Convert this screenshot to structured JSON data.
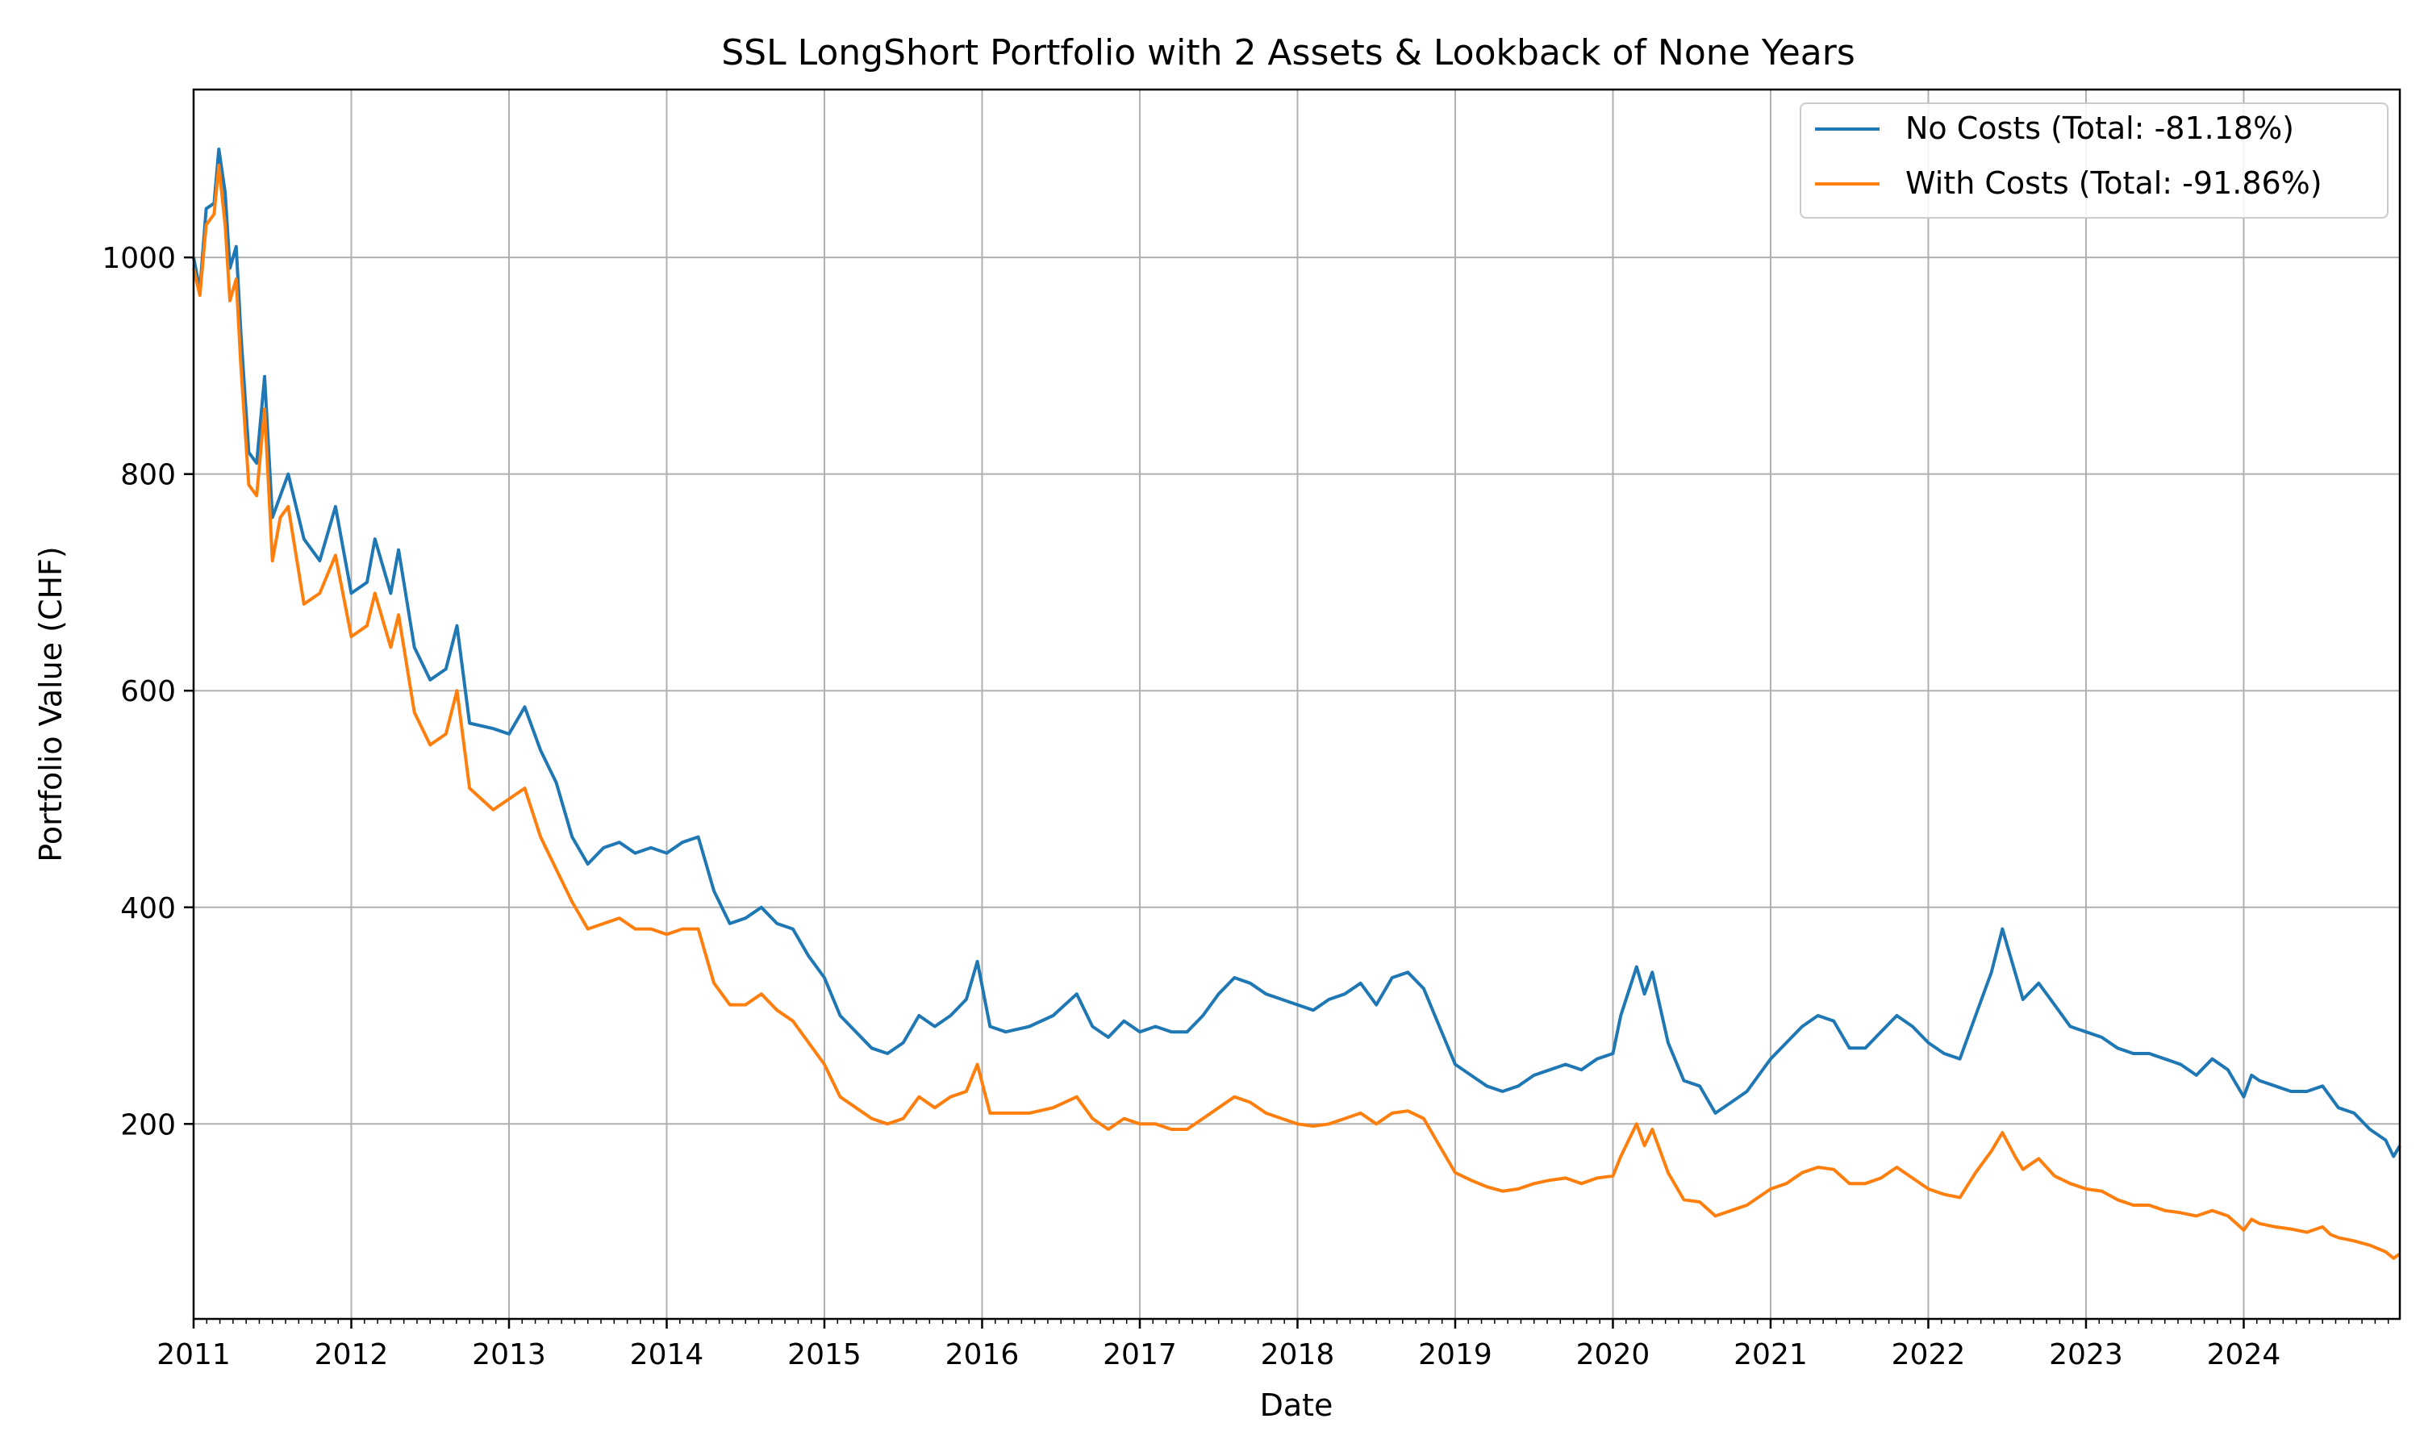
{
  "chart_data": {
    "type": "line",
    "title": "SSL LongShort Portfolio with 2 Assets & Lookback of None Years",
    "xlabel": "Date",
    "ylabel": "Portfolio Value (CHF)",
    "xlim": [
      2011.0,
      2024.99
    ],
    "ylim": [
      20,
      1155
    ],
    "x_ticks": [
      2011,
      2012,
      2013,
      2014,
      2015,
      2016,
      2017,
      2018,
      2019,
      2020,
      2021,
      2022,
      2023,
      2024
    ],
    "y_ticks": [
      200,
      400,
      600,
      800,
      1000
    ],
    "grid": true,
    "legend_position": "upper right",
    "series": [
      {
        "name": "No Costs (Total: -81.18%)",
        "color": "#1f77b4",
        "points": [
          [
            2011.0,
            1000
          ],
          [
            2011.04,
            970
          ],
          [
            2011.08,
            1045
          ],
          [
            2011.13,
            1050
          ],
          [
            2011.16,
            1100
          ],
          [
            2011.2,
            1060
          ],
          [
            2011.23,
            990
          ],
          [
            2011.27,
            1010
          ],
          [
            2011.3,
            930
          ],
          [
            2011.35,
            820
          ],
          [
            2011.4,
            810
          ],
          [
            2011.45,
            890
          ],
          [
            2011.5,
            760
          ],
          [
            2011.55,
            780
          ],
          [
            2011.6,
            800
          ],
          [
            2011.7,
            740
          ],
          [
            2011.8,
            720
          ],
          [
            2011.9,
            770
          ],
          [
            2012.0,
            690
          ],
          [
            2012.1,
            700
          ],
          [
            2012.15,
            740
          ],
          [
            2012.25,
            690
          ],
          [
            2012.3,
            730
          ],
          [
            2012.4,
            640
          ],
          [
            2012.5,
            610
          ],
          [
            2012.6,
            620
          ],
          [
            2012.67,
            660
          ],
          [
            2012.75,
            570
          ],
          [
            2012.9,
            565
          ],
          [
            2013.0,
            560
          ],
          [
            2013.1,
            585
          ],
          [
            2013.2,
            545
          ],
          [
            2013.3,
            515
          ],
          [
            2013.4,
            465
          ],
          [
            2013.5,
            440
          ],
          [
            2013.6,
            455
          ],
          [
            2013.7,
            460
          ],
          [
            2013.8,
            450
          ],
          [
            2013.9,
            455
          ],
          [
            2014.0,
            450
          ],
          [
            2014.1,
            460
          ],
          [
            2014.2,
            465
          ],
          [
            2014.3,
            415
          ],
          [
            2014.4,
            385
          ],
          [
            2014.5,
            390
          ],
          [
            2014.6,
            400
          ],
          [
            2014.7,
            385
          ],
          [
            2014.8,
            380
          ],
          [
            2014.9,
            355
          ],
          [
            2015.0,
            335
          ],
          [
            2015.1,
            300
          ],
          [
            2015.2,
            285
          ],
          [
            2015.3,
            270
          ],
          [
            2015.4,
            265
          ],
          [
            2015.5,
            275
          ],
          [
            2015.6,
            300
          ],
          [
            2015.7,
            290
          ],
          [
            2015.8,
            300
          ],
          [
            2015.9,
            315
          ],
          [
            2015.97,
            350
          ],
          [
            2016.05,
            290
          ],
          [
            2016.15,
            285
          ],
          [
            2016.3,
            290
          ],
          [
            2016.45,
            300
          ],
          [
            2016.6,
            320
          ],
          [
            2016.7,
            290
          ],
          [
            2016.8,
            280
          ],
          [
            2016.9,
            295
          ],
          [
            2017.0,
            285
          ],
          [
            2017.1,
            290
          ],
          [
            2017.2,
            285
          ],
          [
            2017.3,
            285
          ],
          [
            2017.4,
            300
          ],
          [
            2017.5,
            320
          ],
          [
            2017.6,
            335
          ],
          [
            2017.7,
            330
          ],
          [
            2017.8,
            320
          ],
          [
            2017.9,
            315
          ],
          [
            2018.0,
            310
          ],
          [
            2018.1,
            305
          ],
          [
            2018.2,
            315
          ],
          [
            2018.3,
            320
          ],
          [
            2018.4,
            330
          ],
          [
            2018.5,
            310
          ],
          [
            2018.6,
            335
          ],
          [
            2018.7,
            340
          ],
          [
            2018.8,
            325
          ],
          [
            2018.9,
            290
          ],
          [
            2019.0,
            255
          ],
          [
            2019.1,
            245
          ],
          [
            2019.2,
            235
          ],
          [
            2019.3,
            230
          ],
          [
            2019.4,
            235
          ],
          [
            2019.5,
            245
          ],
          [
            2019.6,
            250
          ],
          [
            2019.7,
            255
          ],
          [
            2019.8,
            250
          ],
          [
            2019.9,
            260
          ],
          [
            2020.0,
            265
          ],
          [
            2020.05,
            300
          ],
          [
            2020.15,
            345
          ],
          [
            2020.2,
            320
          ],
          [
            2020.25,
            340
          ],
          [
            2020.35,
            275
          ],
          [
            2020.45,
            240
          ],
          [
            2020.55,
            235
          ],
          [
            2020.65,
            210
          ],
          [
            2020.75,
            220
          ],
          [
            2020.85,
            230
          ],
          [
            2021.0,
            260
          ],
          [
            2021.1,
            275
          ],
          [
            2021.2,
            290
          ],
          [
            2021.3,
            300
          ],
          [
            2021.4,
            295
          ],
          [
            2021.5,
            270
          ],
          [
            2021.6,
            270
          ],
          [
            2021.7,
            285
          ],
          [
            2021.8,
            300
          ],
          [
            2021.9,
            290
          ],
          [
            2022.0,
            275
          ],
          [
            2022.1,
            265
          ],
          [
            2022.2,
            260
          ],
          [
            2022.3,
            300
          ],
          [
            2022.4,
            340
          ],
          [
            2022.47,
            380
          ],
          [
            2022.55,
            340
          ],
          [
            2022.6,
            315
          ],
          [
            2022.7,
            330
          ],
          [
            2022.8,
            310
          ],
          [
            2022.9,
            290
          ],
          [
            2023.0,
            285
          ],
          [
            2023.1,
            280
          ],
          [
            2023.2,
            270
          ],
          [
            2023.3,
            265
          ],
          [
            2023.4,
            265
          ],
          [
            2023.5,
            260
          ],
          [
            2023.6,
            255
          ],
          [
            2023.7,
            245
          ],
          [
            2023.8,
            260
          ],
          [
            2023.9,
            250
          ],
          [
            2024.0,
            225
          ],
          [
            2024.05,
            245
          ],
          [
            2024.1,
            240
          ],
          [
            2024.2,
            235
          ],
          [
            2024.3,
            230
          ],
          [
            2024.4,
            230
          ],
          [
            2024.5,
            235
          ],
          [
            2024.55,
            225
          ],
          [
            2024.6,
            215
          ],
          [
            2024.7,
            210
          ],
          [
            2024.8,
            195
          ],
          [
            2024.9,
            185
          ],
          [
            2024.95,
            170
          ],
          [
            2024.99,
            180
          ]
        ]
      },
      {
        "name": "With Costs (Total: -91.86%)",
        "color": "#ff7f0e",
        "points": [
          [
            2011.0,
            990
          ],
          [
            2011.04,
            965
          ],
          [
            2011.08,
            1030
          ],
          [
            2011.13,
            1040
          ],
          [
            2011.16,
            1085
          ],
          [
            2011.2,
            1030
          ],
          [
            2011.23,
            960
          ],
          [
            2011.27,
            980
          ],
          [
            2011.3,
            900
          ],
          [
            2011.35,
            790
          ],
          [
            2011.4,
            780
          ],
          [
            2011.45,
            860
          ],
          [
            2011.5,
            720
          ],
          [
            2011.55,
            760
          ],
          [
            2011.6,
            770
          ],
          [
            2011.7,
            680
          ],
          [
            2011.8,
            690
          ],
          [
            2011.9,
            725
          ],
          [
            2012.0,
            650
          ],
          [
            2012.1,
            660
          ],
          [
            2012.15,
            690
          ],
          [
            2012.25,
            640
          ],
          [
            2012.3,
            670
          ],
          [
            2012.4,
            580
          ],
          [
            2012.5,
            550
          ],
          [
            2012.6,
            560
          ],
          [
            2012.67,
            600
          ],
          [
            2012.75,
            510
          ],
          [
            2012.9,
            490
          ],
          [
            2013.0,
            500
          ],
          [
            2013.1,
            510
          ],
          [
            2013.2,
            465
          ],
          [
            2013.3,
            435
          ],
          [
            2013.4,
            405
          ],
          [
            2013.5,
            380
          ],
          [
            2013.6,
            385
          ],
          [
            2013.7,
            390
          ],
          [
            2013.8,
            380
          ],
          [
            2013.9,
            380
          ],
          [
            2014.0,
            375
          ],
          [
            2014.1,
            380
          ],
          [
            2014.2,
            380
          ],
          [
            2014.3,
            330
          ],
          [
            2014.4,
            310
          ],
          [
            2014.5,
            310
          ],
          [
            2014.6,
            320
          ],
          [
            2014.7,
            305
          ],
          [
            2014.8,
            295
          ],
          [
            2014.9,
            275
          ],
          [
            2015.0,
            255
          ],
          [
            2015.1,
            225
          ],
          [
            2015.2,
            215
          ],
          [
            2015.3,
            205
          ],
          [
            2015.4,
            200
          ],
          [
            2015.5,
            205
          ],
          [
            2015.6,
            225
          ],
          [
            2015.7,
            215
          ],
          [
            2015.8,
            225
          ],
          [
            2015.9,
            230
          ],
          [
            2015.97,
            255
          ],
          [
            2016.05,
            210
          ],
          [
            2016.15,
            210
          ],
          [
            2016.3,
            210
          ],
          [
            2016.45,
            215
          ],
          [
            2016.6,
            225
          ],
          [
            2016.7,
            205
          ],
          [
            2016.8,
            195
          ],
          [
            2016.9,
            205
          ],
          [
            2017.0,
            200
          ],
          [
            2017.1,
            200
          ],
          [
            2017.2,
            195
          ],
          [
            2017.3,
            195
          ],
          [
            2017.4,
            205
          ],
          [
            2017.5,
            215
          ],
          [
            2017.6,
            225
          ],
          [
            2017.7,
            220
          ],
          [
            2017.8,
            210
          ],
          [
            2017.9,
            205
          ],
          [
            2018.0,
            200
          ],
          [
            2018.1,
            198
          ],
          [
            2018.2,
            200
          ],
          [
            2018.3,
            205
          ],
          [
            2018.4,
            210
          ],
          [
            2018.5,
            200
          ],
          [
            2018.6,
            210
          ],
          [
            2018.7,
            212
          ],
          [
            2018.8,
            205
          ],
          [
            2018.9,
            180
          ],
          [
            2019.0,
            155
          ],
          [
            2019.1,
            148
          ],
          [
            2019.2,
            142
          ],
          [
            2019.3,
            138
          ],
          [
            2019.4,
            140
          ],
          [
            2019.5,
            145
          ],
          [
            2019.6,
            148
          ],
          [
            2019.7,
            150
          ],
          [
            2019.8,
            145
          ],
          [
            2019.9,
            150
          ],
          [
            2020.0,
            152
          ],
          [
            2020.05,
            170
          ],
          [
            2020.15,
            200
          ],
          [
            2020.2,
            180
          ],
          [
            2020.25,
            195
          ],
          [
            2020.35,
            155
          ],
          [
            2020.45,
            130
          ],
          [
            2020.55,
            128
          ],
          [
            2020.65,
            115
          ],
          [
            2020.75,
            120
          ],
          [
            2020.85,
            125
          ],
          [
            2021.0,
            140
          ],
          [
            2021.1,
            145
          ],
          [
            2021.2,
            155
          ],
          [
            2021.3,
            160
          ],
          [
            2021.4,
            158
          ],
          [
            2021.5,
            145
          ],
          [
            2021.6,
            145
          ],
          [
            2021.7,
            150
          ],
          [
            2021.8,
            160
          ],
          [
            2021.9,
            150
          ],
          [
            2022.0,
            140
          ],
          [
            2022.1,
            135
          ],
          [
            2022.2,
            132
          ],
          [
            2022.3,
            155
          ],
          [
            2022.4,
            175
          ],
          [
            2022.47,
            192
          ],
          [
            2022.55,
            170
          ],
          [
            2022.6,
            158
          ],
          [
            2022.7,
            168
          ],
          [
            2022.8,
            152
          ],
          [
            2022.9,
            145
          ],
          [
            2023.0,
            140
          ],
          [
            2023.1,
            138
          ],
          [
            2023.2,
            130
          ],
          [
            2023.3,
            125
          ],
          [
            2023.4,
            125
          ],
          [
            2023.5,
            120
          ],
          [
            2023.6,
            118
          ],
          [
            2023.7,
            115
          ],
          [
            2023.8,
            120
          ],
          [
            2023.9,
            115
          ],
          [
            2024.0,
            102
          ],
          [
            2024.05,
            112
          ],
          [
            2024.1,
            108
          ],
          [
            2024.2,
            105
          ],
          [
            2024.3,
            103
          ],
          [
            2024.4,
            100
          ],
          [
            2024.5,
            105
          ],
          [
            2024.55,
            98
          ],
          [
            2024.6,
            95
          ],
          [
            2024.7,
            92
          ],
          [
            2024.8,
            88
          ],
          [
            2024.9,
            82
          ],
          [
            2024.95,
            76
          ],
          [
            2024.99,
            80
          ]
        ]
      }
    ]
  }
}
